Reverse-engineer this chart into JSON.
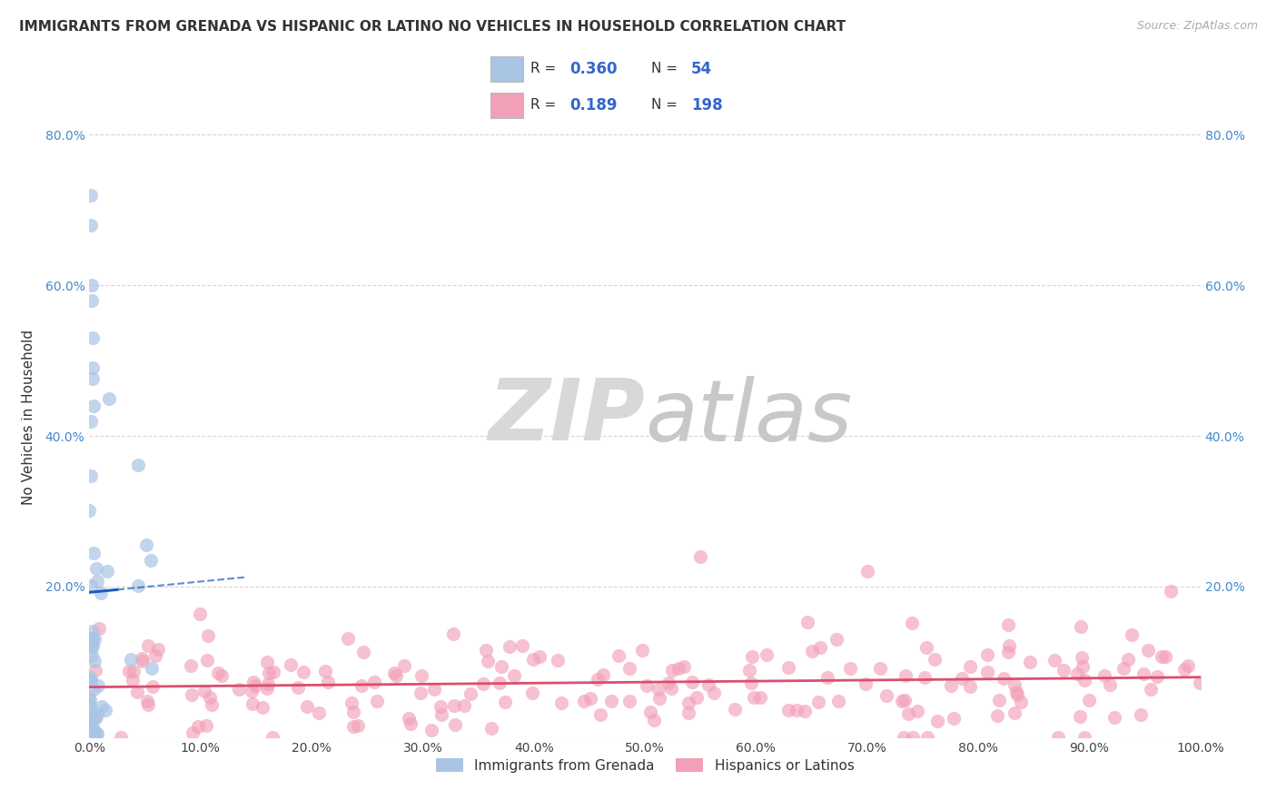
{
  "title": "IMMIGRANTS FROM GRENADA VS HISPANIC OR LATINO NO VEHICLES IN HOUSEHOLD CORRELATION CHART",
  "source": "Source: ZipAtlas.com",
  "ylabel": "No Vehicles in Household",
  "xlim": [
    0,
    1.0
  ],
  "ylim": [
    0,
    0.85
  ],
  "xticks": [
    0.0,
    0.1,
    0.2,
    0.3,
    0.4,
    0.5,
    0.6,
    0.7,
    0.8,
    0.9,
    1.0
  ],
  "xtick_labels": [
    "0.0%",
    "10.0%",
    "20.0%",
    "30.0%",
    "40.0%",
    "50.0%",
    "60.0%",
    "70.0%",
    "80.0%",
    "90.0%",
    "100.0%"
  ],
  "yticks": [
    0.0,
    0.2,
    0.4,
    0.6,
    0.8
  ],
  "ytick_labels": [
    "",
    "20.0%",
    "40.0%",
    "60.0%",
    "80.0%"
  ],
  "blue_R": 0.36,
  "blue_N": 54,
  "pink_R": 0.189,
  "pink_N": 198,
  "blue_color": "#aac4e4",
  "pink_color": "#f2a0b8",
  "blue_line_color": "#1a5bbf",
  "pink_line_color": "#d94f70",
  "legend_blue_label": "Immigrants from Grenada",
  "legend_pink_label": "Hispanics or Latinos",
  "watermark_zip": "ZIP",
  "watermark_atlas": "atlas",
  "background_color": "#ffffff",
  "grid_color": "#cccccc",
  "title_fontsize": 11,
  "source_fontsize": 9,
  "tick_fontsize": 10
}
